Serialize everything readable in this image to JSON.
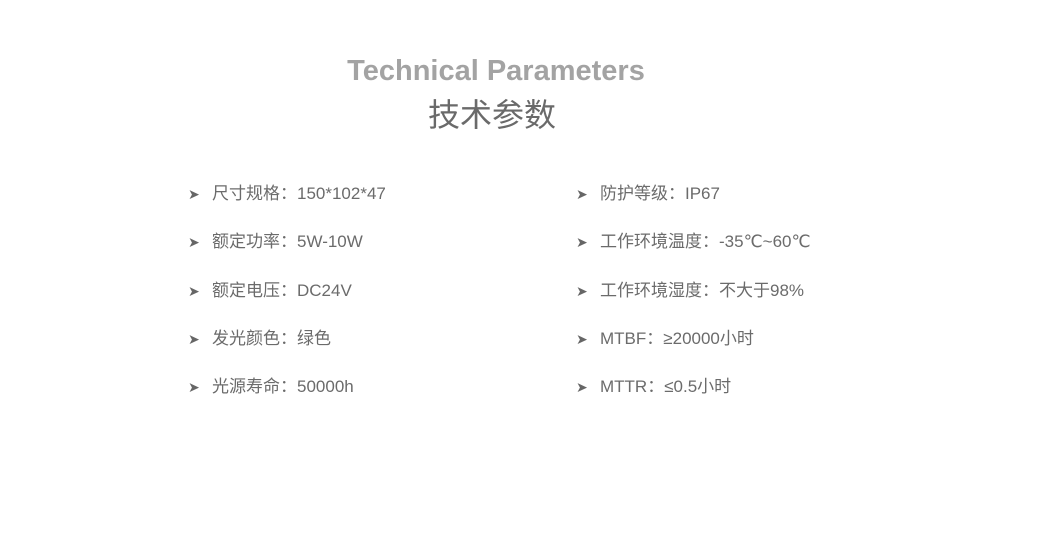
{
  "title_en": "Technical Parameters",
  "title_cn": "技术参数",
  "left": [
    {
      "label": "尺寸规格",
      "value": "150*102*47"
    },
    {
      "label": "额定功率",
      "value": "5W-10W"
    },
    {
      "label": "额定电压",
      "value": "DC24V"
    },
    {
      "label": "发光颜色",
      "value": "绿色"
    },
    {
      "label": "光源寿命",
      "value": "50000h"
    }
  ],
  "right": [
    {
      "label": "防护等级",
      "value": "IP67"
    },
    {
      "label": "工作环境温度",
      "value": "-35℃~60℃"
    },
    {
      "label": "工作环境湿度",
      "value": "不大于98%"
    },
    {
      "label": "MTBF",
      "value": "≥20000小时"
    },
    {
      "label": "MTTR",
      "value": "≤0.5小时"
    }
  ],
  "separator": "：",
  "bullet_icon": "arrowhead-bullet-icon"
}
